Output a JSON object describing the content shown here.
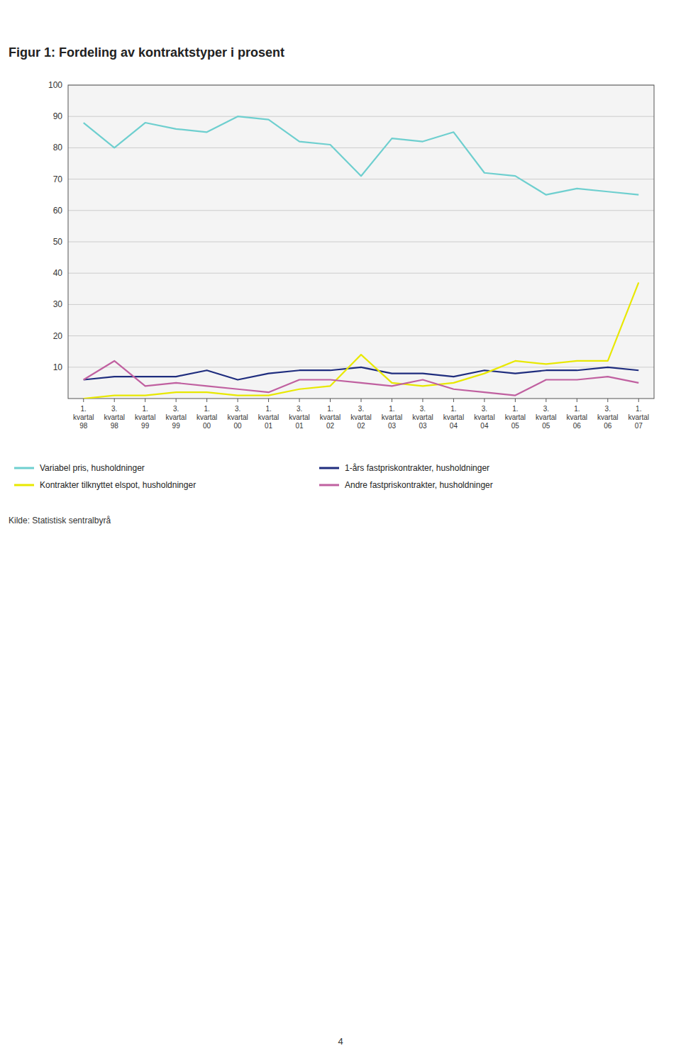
{
  "chart_data": {
    "type": "line",
    "title": "Figur 1: Fordeling av kontraktstyper i prosent",
    "categories": [
      "1.\nkvartal\n98",
      "3.\nkvartal\n98",
      "1.\nkvartal\n99",
      "3.\nkvartal\n99",
      "1.\nkvartal\n00",
      "3.\nkvartal\n00",
      "1.\nkvartal\n01",
      "3.\nkvartal\n01",
      "1.\nkvartal\n02",
      "3.\nkvartal\n02",
      "1.\nkvartal\n03",
      "3.\nkvartal\n03",
      "1.\nkvartal\n04",
      "3.\nkvartal\n04",
      "1.\nkvartal\n05",
      "3.\nkvartal\n05",
      "1.\nkvartal\n06",
      "3.\nkvartal\n06",
      "1.\nkvartal\n07"
    ],
    "series": [
      {
        "name": "Variabel pris, husholdninger",
        "color": "#6ecfcf",
        "values": [
          88,
          80,
          88,
          86,
          85,
          90,
          89,
          82,
          81,
          71,
          83,
          82,
          85,
          72,
          71,
          65,
          67,
          66,
          65
        ]
      },
      {
        "name": "1-års fastpriskontrakter, husholdninger",
        "color": "#1f2d7e",
        "values": [
          6,
          7,
          7,
          7,
          9,
          6,
          8,
          9,
          9,
          10,
          8,
          8,
          7,
          9,
          8,
          9,
          9,
          10,
          9
        ]
      },
      {
        "name": "Kontrakter tilknyttet elspot, husholdninger",
        "color": "#e8e800",
        "values": [
          0,
          1,
          1,
          2,
          2,
          1,
          1,
          3,
          4,
          14,
          5,
          4,
          5,
          8,
          12,
          11,
          12,
          12,
          37
        ]
      },
      {
        "name": "Andre fastpriskontrakter, husholdninger",
        "color": "#c060a0",
        "values": [
          6,
          12,
          4,
          5,
          4,
          3,
          2,
          6,
          6,
          5,
          4,
          6,
          3,
          2,
          1,
          6,
          6,
          7,
          5
        ]
      }
    ],
    "ylim": [
      0,
      100
    ],
    "yticks": [
      10,
      20,
      30,
      40,
      50,
      60,
      70,
      80,
      90,
      100
    ],
    "grid": true,
    "legend": "bottom",
    "source": "Kilde: Statistisk sentralbyrå",
    "annotations": [
      "4"
    ]
  }
}
